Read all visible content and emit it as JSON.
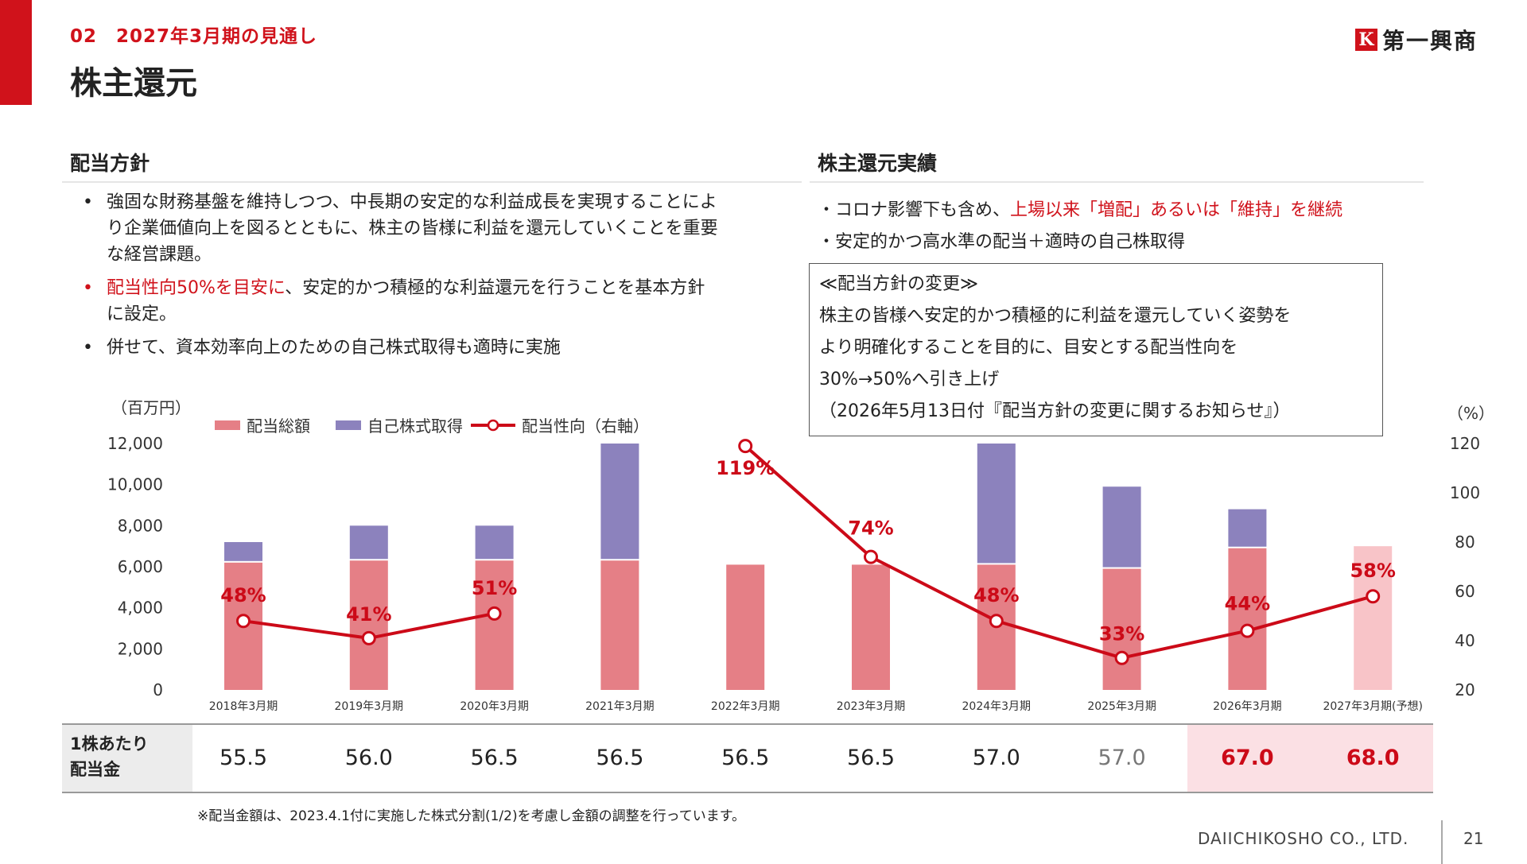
{
  "header": {
    "section_label": "02　2027年3月期の見通し",
    "page_title": "株主還元",
    "logo_mark": "K",
    "logo_text": "第一興商"
  },
  "policy": {
    "heading": "配当方針",
    "bullet_symbol": "•",
    "bullet1": [
      "強固な財務基盤を維持しつつ、中長期の安定的な利益成長を実現することによ",
      "り企業価値向上を図るとともに、株主の皆様に利益を還元していくことを重要",
      "な経営課題。"
    ],
    "bullet2_red": "配当性向50%を目安に",
    "bullet2_rest": [
      "、安定的かつ積極的な利益還元を行うことを基本方針",
      "に設定。"
    ],
    "bullet3": "併せて、資本効率向上のための自己株式取得も適時に実施"
  },
  "results": {
    "heading": "株主還元実績",
    "line1_prefix": "・コロナ影響下も含め、",
    "line1_red": "上場以来「増配」あるいは「維持」を継続",
    "line2": "・安定的かつ高水準の配当＋適時の自己株取得",
    "note_lines": [
      "≪配当方針の変更≫",
      "株主の皆様へ安定的かつ積極的に利益を還元していく姿勢を",
      "より明確化することを目的に、目安とする配当性向を",
      "30%→50%へ引き上げ",
      "（2026年5月13日付『配当方針の変更に関するお知らせ』）"
    ]
  },
  "chart_data": {
    "type": "bar",
    "left_unit": "（百万円）",
    "right_unit": "（%）",
    "categories": [
      "2018年3月期",
      "2019年3月期",
      "2020年3月期",
      "2021年3月期",
      "2022年3月期",
      "2023年3月期",
      "2024年3月期",
      "2025年3月期",
      "2026年3月期",
      "2027年3月期"
    ],
    "forecast_suffix": "(予想)",
    "ylim": [
      0,
      12000
    ],
    "yticks": [
      "0",
      "2,000",
      "4,000",
      "6,000",
      "8,000",
      "10,000",
      "12,000"
    ],
    "y2lim": [
      20,
      120
    ],
    "y2ticks": [
      "20",
      "40",
      "60",
      "80",
      "100",
      "120"
    ],
    "series": [
      {
        "name": "配当総額",
        "type": "bar",
        "color": "#e57f86",
        "forecast_color": "#f8c4c8",
        "values": [
          6200,
          6300,
          6300,
          6300,
          6100,
          6100,
          6100,
          5900,
          6900,
          7000
        ]
      },
      {
        "name": "自己株式取得",
        "type": "bar",
        "color": "#8c82bd",
        "values": [
          1000,
          1700,
          1700,
          5700,
          0,
          0,
          5900,
          4000,
          1900,
          0
        ]
      },
      {
        "name": "配当性向（右軸）",
        "type": "line",
        "axis": "right",
        "color": "#cc0a18",
        "values": [
          48,
          41,
          51,
          null,
          119,
          74,
          48,
          33,
          44,
          58
        ],
        "labels": [
          "48%",
          "41%",
          "51%",
          "",
          "119%",
          "74%",
          "48%",
          "33%",
          "44%",
          "58%"
        ]
      }
    ]
  },
  "dps_table": {
    "label_lines": [
      "1株あたり",
      "配当金"
    ],
    "values": [
      "55.5",
      "56.0",
      "56.5",
      "56.5",
      "56.5",
      "56.5",
      "57.0",
      "57.0",
      "67.0",
      "68.0"
    ]
  },
  "footer": {
    "note": "※配当金額は、2023.4.1付に実施した株式分割(1/2)を考慮し金額の調整を行っています。",
    "company": "DAIICHIKOSHO CO., LTD.",
    "page_number": "21"
  }
}
